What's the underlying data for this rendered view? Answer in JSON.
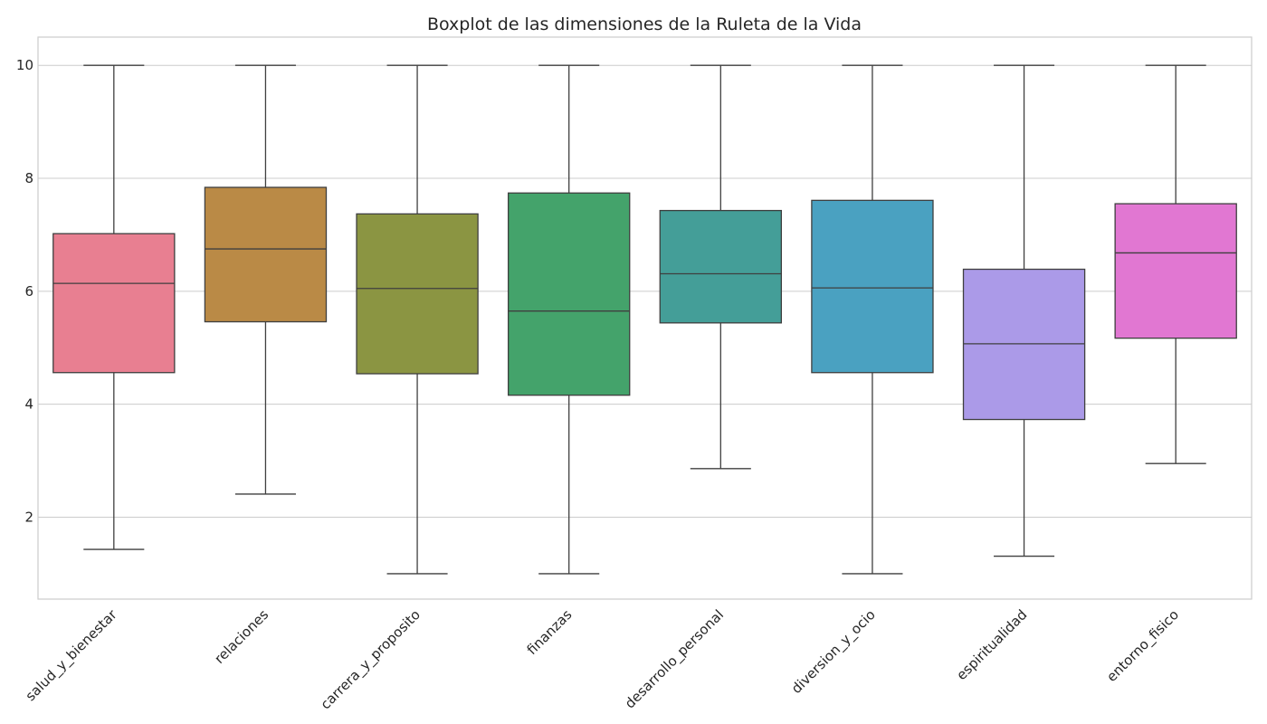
{
  "chart_data": {
    "type": "box",
    "title": "Boxplot de las dimensiones de la Ruleta de la Vida",
    "xlabel": "",
    "ylabel": "",
    "ylim": [
      0.55,
      10.5
    ],
    "yticks": [
      2,
      4,
      6,
      8,
      10
    ],
    "grid": true,
    "legend": "none",
    "categories": [
      "salud_y_bienestar",
      "relaciones",
      "carrera_y_proposito",
      "finanzas",
      "desarrollo_personal",
      "diversion_y_ocio",
      "espiritualidad",
      "entorno_fisico"
    ],
    "series": [
      {
        "category": "salud_y_bienestar",
        "whisker_low": 1.43,
        "q1": 4.56,
        "median": 6.14,
        "q3": 7.02,
        "whisker_high": 10.0,
        "color": "#e87f91"
      },
      {
        "category": "relaciones",
        "whisker_low": 2.41,
        "q1": 5.46,
        "median": 6.75,
        "q3": 7.84,
        "whisker_high": 10.0,
        "color": "#ba8a46"
      },
      {
        "category": "carrera_y_proposito",
        "whisker_low": 1.0,
        "q1": 4.54,
        "median": 6.05,
        "q3": 7.37,
        "whisker_high": 10.0,
        "color": "#8b9542"
      },
      {
        "category": "finanzas",
        "whisker_low": 1.0,
        "q1": 4.16,
        "median": 5.65,
        "q3": 7.74,
        "whisker_high": 10.0,
        "color": "#44a36b"
      },
      {
        "category": "desarrollo_personal",
        "whisker_low": 2.86,
        "q1": 5.44,
        "median": 6.31,
        "q3": 7.43,
        "whisker_high": 10.0,
        "color": "#449e98"
      },
      {
        "category": "diversion_y_ocio",
        "whisker_low": 1.0,
        "q1": 4.56,
        "median": 6.06,
        "q3": 7.61,
        "whisker_high": 10.0,
        "color": "#4aa1c1"
      },
      {
        "category": "espiritualidad",
        "whisker_low": 1.31,
        "q1": 3.73,
        "median": 5.07,
        "q3": 6.39,
        "whisker_high": 10.0,
        "color": "#ab9ae8"
      },
      {
        "category": "entorno_fisico",
        "whisker_low": 2.95,
        "q1": 5.17,
        "median": 6.68,
        "q3": 7.55,
        "whisker_high": 10.0,
        "color": "#e177d2"
      }
    ]
  }
}
